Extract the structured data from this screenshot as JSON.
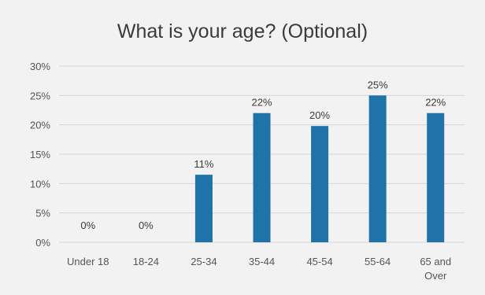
{
  "chart_data": {
    "type": "bar",
    "title": "What is your age? (Optional)",
    "categories": [
      "Under 18",
      "18-24",
      "25-34",
      "35-44",
      "45-54",
      "55-64",
      "65 and Over"
    ],
    "values": [
      0,
      0,
      11.5,
      22,
      19.8,
      25,
      22
    ],
    "data_labels": [
      "0%",
      "0%",
      "11%",
      "22%",
      "20%",
      "25%",
      "22%"
    ],
    "y_ticks": [
      "0%",
      "5%",
      "10%",
      "15%",
      "20%",
      "25%",
      "30%"
    ],
    "ylim": [
      0,
      30
    ],
    "grid": true,
    "legend": "none",
    "bar_color": "#1f73a8",
    "grid_color": "#d6d6d6",
    "xlabel": "",
    "ylabel": ""
  }
}
